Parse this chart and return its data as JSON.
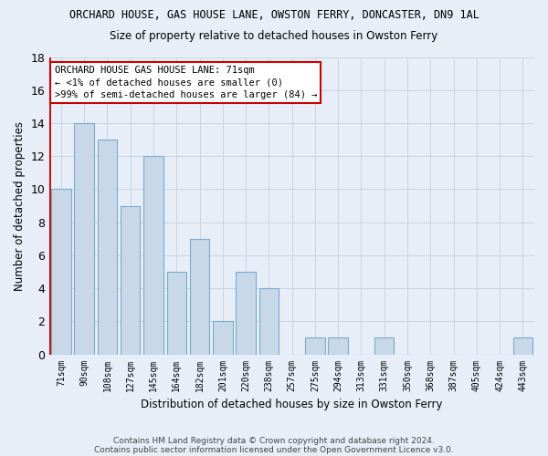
{
  "title": "ORCHARD HOUSE, GAS HOUSE LANE, OWSTON FERRY, DONCASTER, DN9 1AL",
  "subtitle": "Size of property relative to detached houses in Owston Ferry",
  "xlabel": "Distribution of detached houses by size in Owston Ferry",
  "ylabel": "Number of detached properties",
  "categories": [
    "71sqm",
    "90sqm",
    "108sqm",
    "127sqm",
    "145sqm",
    "164sqm",
    "182sqm",
    "201sqm",
    "220sqm",
    "238sqm",
    "257sqm",
    "275sqm",
    "294sqm",
    "313sqm",
    "331sqm",
    "350sqm",
    "368sqm",
    "387sqm",
    "405sqm",
    "424sqm",
    "443sqm"
  ],
  "values": [
    10,
    14,
    13,
    9,
    12,
    5,
    7,
    2,
    5,
    4,
    0,
    1,
    1,
    0,
    1,
    0,
    0,
    0,
    0,
    0,
    1
  ],
  "bar_color": "#c8d8e8",
  "bar_edge_color": "#7aabcc",
  "highlight_color": "#cc0000",
  "ylim": [
    0,
    18
  ],
  "yticks": [
    0,
    2,
    4,
    6,
    8,
    10,
    12,
    14,
    16,
    18
  ],
  "annotation_title": "ORCHARD HOUSE GAS HOUSE LANE: 71sqm",
  "annotation_line1": "← <1% of detached houses are smaller (0)",
  "annotation_line2": ">99% of semi-detached houses are larger (84) →",
  "annotation_box_color": "#ffffff",
  "annotation_box_edge": "#cc0000",
  "grid_color": "#c8d4e4",
  "background_color": "#e8eef8",
  "title_font": "DejaVu Sans",
  "footer1": "Contains HM Land Registry data © Crown copyright and database right 2024.",
  "footer2": "Contains public sector information licensed under the Open Government Licence v3.0."
}
